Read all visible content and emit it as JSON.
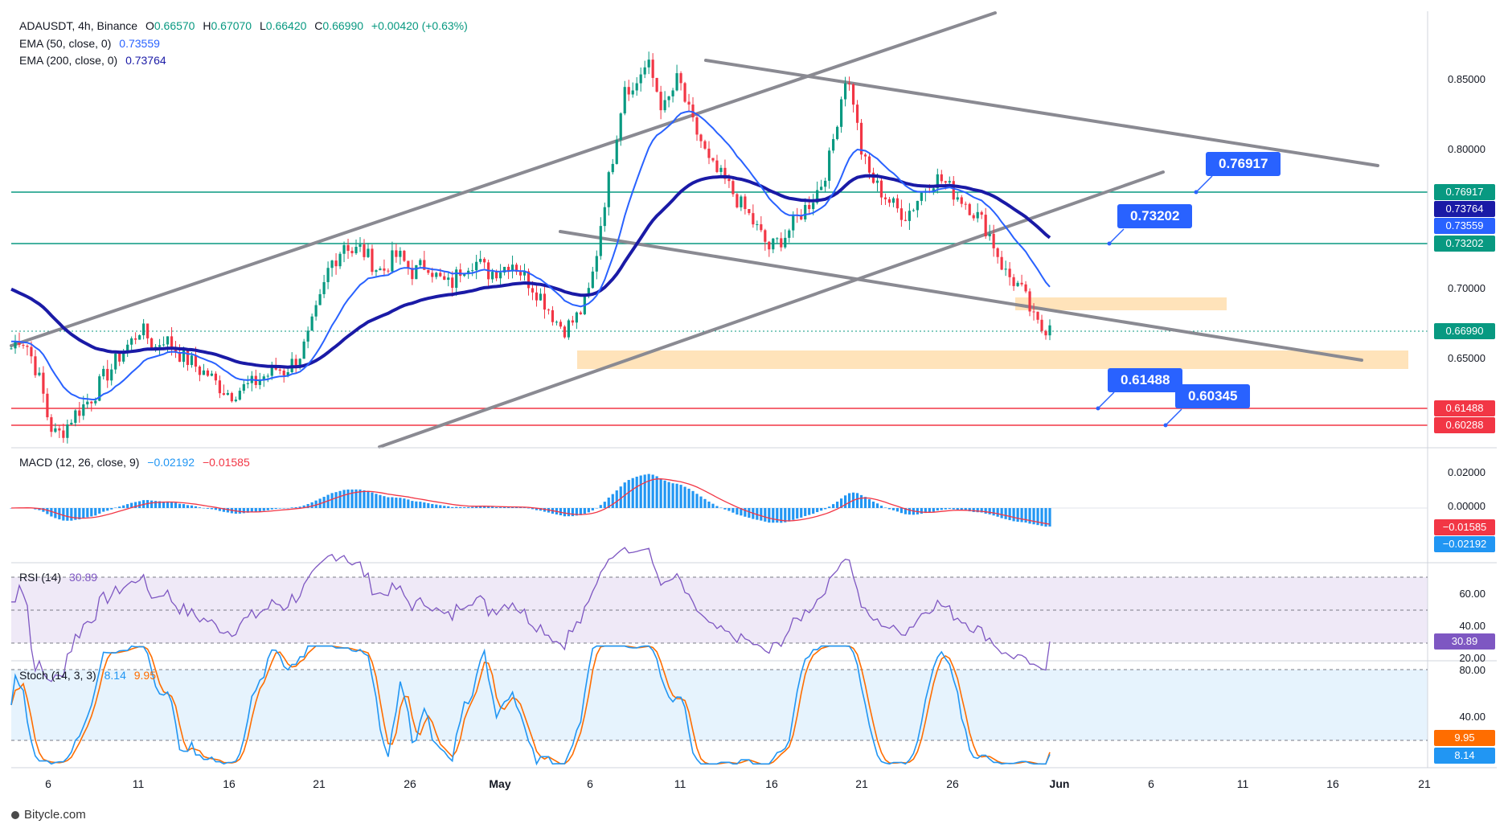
{
  "header": {
    "symbol": "ADAUSDT, 4h, Binance",
    "open_label": "O",
    "open": "0.66570",
    "high_label": "H",
    "high": "0.67070",
    "low_label": "L",
    "low": "0.66420",
    "close_label": "C",
    "close": "0.66990",
    "change": "+0.00420 (+0.63%)"
  },
  "indicators": {
    "ema50": {
      "label": "EMA (50, close, 0)",
      "value": "0.73559",
      "color": "#2962ff"
    },
    "ema200": {
      "label": "EMA (200, close, 0)",
      "value": "0.73764",
      "color": "#1a1aa6"
    },
    "macd": {
      "label": "MACD (12, 26, close, 9)",
      "value1": "−0.02192",
      "value2": "−0.01585"
    },
    "rsi": {
      "label": "RSI (14)",
      "value": "30.89"
    },
    "stoch": {
      "label": "Stoch (14, 3, 3)",
      "value1": "8.14",
      "value2": "9.95"
    }
  },
  "price_axis": [
    "0.85000",
    "0.80000",
    "0.70000",
    "0.65000"
  ],
  "macd_axis": [
    "0.02000",
    "0.00000"
  ],
  "rsi_axis": [
    "60.00",
    "40.00",
    "20.00"
  ],
  "stoch_axis": [
    "80.00",
    "40.00"
  ],
  "price_tags": [
    {
      "label": "0.76917",
      "price": 0.76917,
      "color": "#089981"
    },
    {
      "label": "0.73764",
      "price": 0.73764,
      "color": "#1a1aa6"
    },
    {
      "label": "0.73559",
      "price": 0.73559,
      "color": "#2962ff"
    },
    {
      "label": "0.73202",
      "price": 0.73202,
      "color": "#089981"
    },
    {
      "label": "0.66990",
      "price": 0.6699,
      "color": "#089981"
    },
    {
      "label": "0.61488",
      "price": 0.61488,
      "color": "#f23645"
    },
    {
      "label": "0.60288",
      "price": 0.60288,
      "color": "#f23645"
    }
  ],
  "macd_tags": [
    {
      "label": "−0.01585",
      "color": "#f23645"
    },
    {
      "label": "−0.02192",
      "color": "#2196f3"
    }
  ],
  "rsi_tag": {
    "label": "30.89",
    "color": "#7e57c2"
  },
  "stoch_tags": [
    {
      "label": "9.95",
      "color": "#ff6d00"
    },
    {
      "label": "8.14",
      "color": "#2196f3"
    }
  ],
  "callouts": [
    {
      "label": "0.76917",
      "price": 0.76917
    },
    {
      "label": "0.73202",
      "price": 0.73202
    },
    {
      "label": "0.61488",
      "price": 0.61488
    },
    {
      "label": "0.60345",
      "price": 0.60345
    }
  ],
  "x_axis": [
    "6",
    "11",
    "16",
    "21",
    "26",
    "May",
    "6",
    "11",
    "16",
    "21",
    "26",
    "Jun",
    "6",
    "11",
    "16",
    "21"
  ],
  "footer": {
    "brand": "Bitycle.com"
  },
  "chart_data": {
    "type": "candlestick",
    "symbol": "ADAUSDT",
    "timeframe": "4h",
    "exchange": "Binance",
    "ylim": [
      0.59,
      0.875
    ],
    "horizontal_levels": [
      {
        "price": 0.76917,
        "color": "#089981"
      },
      {
        "price": 0.73202,
        "color": "#089981"
      },
      {
        "price": 0.61488,
        "color": "#f23645"
      },
      {
        "price": 0.60288,
        "color": "#f23645"
      }
    ],
    "zones": [
      {
        "from": 0.688,
        "to": 0.697,
        "color": "#ffe0b2"
      },
      {
        "from": 0.643,
        "to": 0.656,
        "color": "#ffe0b2"
      }
    ],
    "close_series": [
      0.655,
      0.662,
      0.658,
      0.645,
      0.63,
      0.605,
      0.598,
      0.602,
      0.61,
      0.615,
      0.62,
      0.625,
      0.635,
      0.64,
      0.648,
      0.655,
      0.66,
      0.668,
      0.662,
      0.655,
      0.662,
      0.658,
      0.652,
      0.648,
      0.645,
      0.64,
      0.638,
      0.632,
      0.628,
      0.625,
      0.628,
      0.63,
      0.632,
      0.636,
      0.638,
      0.642,
      0.64,
      0.645,
      0.65,
      0.66,
      0.675,
      0.69,
      0.71,
      0.715,
      0.725,
      0.718,
      0.72,
      0.715,
      0.708,
      0.705,
      0.712,
      0.716,
      0.71,
      0.704,
      0.708,
      0.71,
      0.702,
      0.698,
      0.696,
      0.705,
      0.71,
      0.712,
      0.709,
      0.704,
      0.706,
      0.708,
      0.712,
      0.706,
      0.7,
      0.694,
      0.688,
      0.68,
      0.672,
      0.668,
      0.672,
      0.678,
      0.688,
      0.71,
      0.745,
      0.77,
      0.8,
      0.83,
      0.822,
      0.835,
      0.84,
      0.826,
      0.81,
      0.82,
      0.832,
      0.814,
      0.8,
      0.79,
      0.776,
      0.77,
      0.765,
      0.758,
      0.75,
      0.744,
      0.736,
      0.728,
      0.72,
      0.724,
      0.728,
      0.735,
      0.742,
      0.748,
      0.755,
      0.764,
      0.78,
      0.806,
      0.832,
      0.82,
      0.786,
      0.77,
      0.762,
      0.756,
      0.75,
      0.745,
      0.742,
      0.748,
      0.756,
      0.762,
      0.766,
      0.764,
      0.758,
      0.754,
      0.75,
      0.744,
      0.738,
      0.73,
      0.718,
      0.705,
      0.7,
      0.695,
      0.685,
      0.672,
      0.667,
      0.6699
    ]
  }
}
